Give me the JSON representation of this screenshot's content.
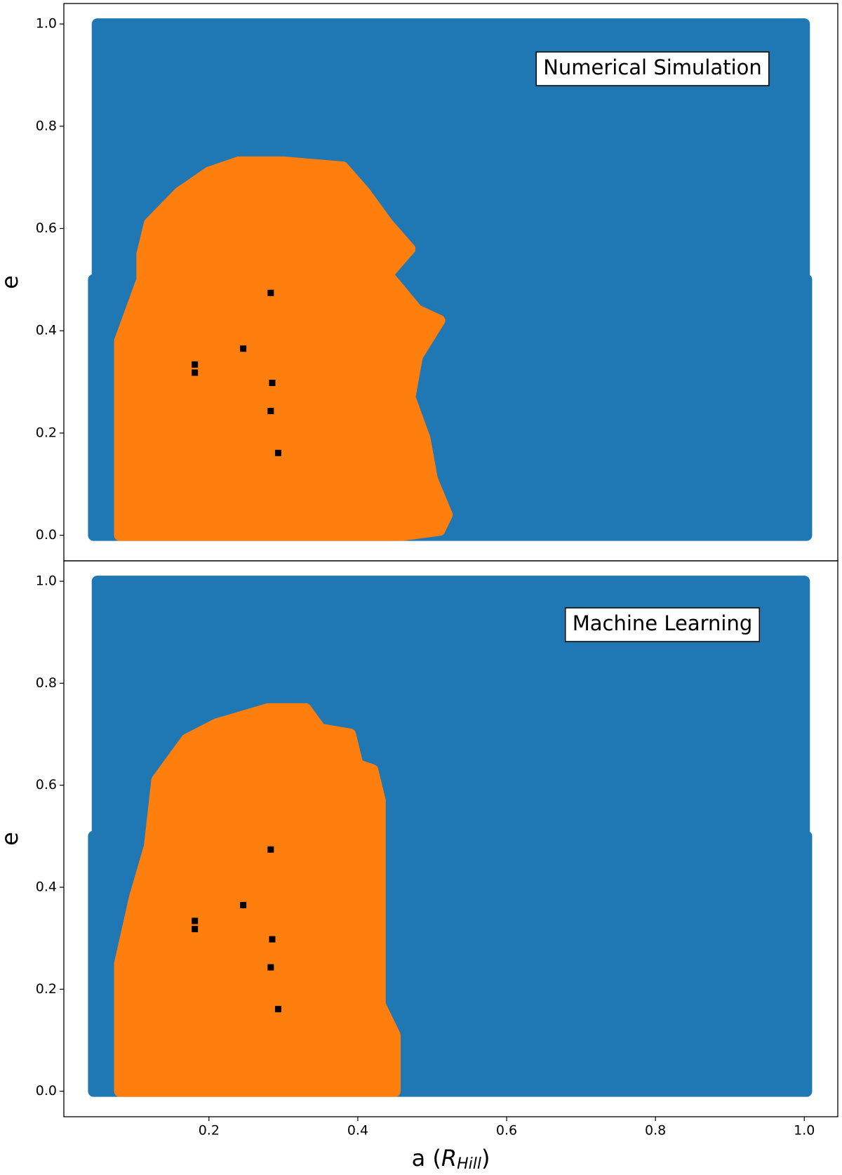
{
  "chart_data": [
    {
      "type": "scatter",
      "annotation": "Numerical Simulation",
      "ylabel": "e",
      "xlim": [
        0.005,
        1.045
      ],
      "ylim": [
        -0.05,
        1.04
      ],
      "yticks": [
        {
          "value": 0,
          "label": "0.0"
        },
        0.2,
        0.4,
        0.6,
        0.8,
        {
          "value": 1,
          "label": "1.0"
        }
      ],
      "series": [
        {
          "color": "#1f77b4",
          "marker": "region",
          "x": [
            0.045,
            1.003,
            1.003,
            1.0,
            1.0,
            0.05,
            0.05,
            0.045
          ],
          "values": [
            0,
            0,
            0.5,
            0.5,
            1.0,
            1.0,
            0.5,
            0.5
          ]
        },
        {
          "color": "#ff7f0e",
          "marker": "region",
          "x": [
            0.08,
            0.08,
            0.08,
            0.08,
            0.11,
            0.11,
            0.12,
            0.16,
            0.2,
            0.24,
            0.3,
            0.38,
            0.41,
            0.44,
            0.47,
            0.44,
            0.48,
            0.51,
            0.48,
            0.47,
            0.49,
            0.5,
            0.52,
            0.51,
            0.46
          ],
          "values": [
            0,
            0.14,
            0.31,
            0.38,
            0.5,
            0.55,
            0.61,
            0.67,
            0.71,
            0.73,
            0.73,
            0.72,
            0.67,
            0.61,
            0.56,
            0.51,
            0.44,
            0.42,
            0.35,
            0.27,
            0.19,
            0.11,
            0.04,
            0.01,
            0
          ]
        },
        {
          "color": "#000000",
          "marker": "square",
          "x": [
            0.181,
            0.181,
            0.246,
            0.283,
            0.285,
            0.283,
            0.293
          ],
          "values": [
            0.334,
            0.318,
            0.365,
            0.474,
            0.298,
            0.243,
            0.161
          ]
        }
      ]
    },
    {
      "type": "scatter",
      "annotation": "Machine Learning",
      "ylabel": "e",
      "xlabel": {
        "main": "a (",
        "symbol": "R",
        "sub": "Hill",
        "end": ")"
      },
      "xlim": [
        0.005,
        1.045
      ],
      "ylim": [
        -0.05,
        1.04
      ],
      "xticks": [
        0.2,
        0.4,
        0.6,
        0.8,
        {
          "value": 1,
          "label": "1.0"
        }
      ],
      "yticks": [
        {
          "value": 0,
          "label": "0.0"
        },
        0.2,
        0.4,
        0.6,
        0.8,
        {
          "value": 1,
          "label": "1.0"
        }
      ],
      "series": [
        {
          "color": "#1f77b4",
          "marker": "region",
          "x": [
            0.045,
            1.003,
            1.003,
            1.0,
            1.0,
            0.05,
            0.05,
            0.045
          ],
          "values": [
            0,
            0,
            0.5,
            0.5,
            1.0,
            1.0,
            0.5,
            0.5
          ]
        },
        {
          "color": "#ff7f0e",
          "marker": "region",
          "x": [
            0.08,
            0.08,
            0.1,
            0.12,
            0.13,
            0.17,
            0.21,
            0.28,
            0.33,
            0.35,
            0.39,
            0.4,
            0.42,
            0.43,
            0.43,
            0.45,
            0.45
          ],
          "values": [
            0,
            0.25,
            0.38,
            0.48,
            0.61,
            0.69,
            0.72,
            0.75,
            0.75,
            0.71,
            0.7,
            0.64,
            0.63,
            0.57,
            0.17,
            0.11,
            0
          ]
        },
        {
          "color": "#000000",
          "marker": "square",
          "x": [
            0.181,
            0.181,
            0.246,
            0.283,
            0.285,
            0.283,
            0.293
          ],
          "values": [
            0.334,
            0.318,
            0.365,
            0.474,
            0.298,
            0.243,
            0.161
          ]
        }
      ]
    }
  ]
}
